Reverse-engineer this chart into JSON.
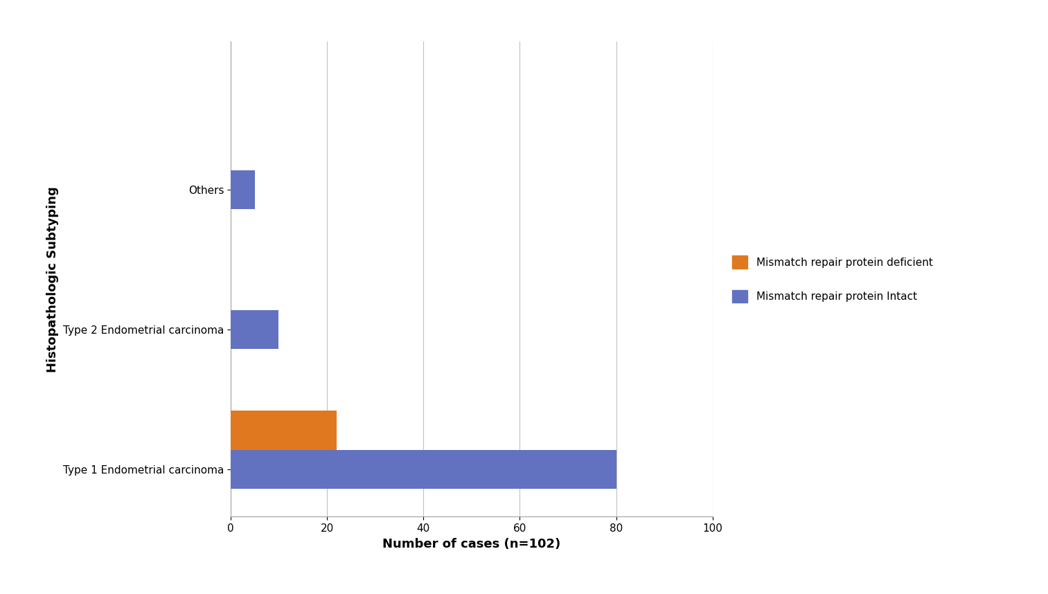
{
  "categories": [
    "Type 1 Endometrial carcinoma",
    "Type 2 Endometrial carcinoma",
    "Others"
  ],
  "deficient": [
    22,
    0,
    0
  ],
  "intact": [
    80,
    10,
    5
  ],
  "color_deficient": "#E07820",
  "color_intact": "#6272C0",
  "xlabel": "Number of cases (n=102)",
  "ylabel": "Histopathologic Subtyping",
  "legend_deficient": "Mismatch repair protein deficient",
  "legend_intact": "Mismatch repair protein Intact",
  "xlim": [
    0,
    100
  ],
  "xticks": [
    0,
    20,
    40,
    60,
    80,
    100
  ],
  "bar_height": 0.28,
  "bar_gap": 0.0,
  "background_color": "#ffffff",
  "grid_color": "#c0c0c0",
  "figsize": [
    15.13,
    8.58
  ],
  "dpi": 100
}
